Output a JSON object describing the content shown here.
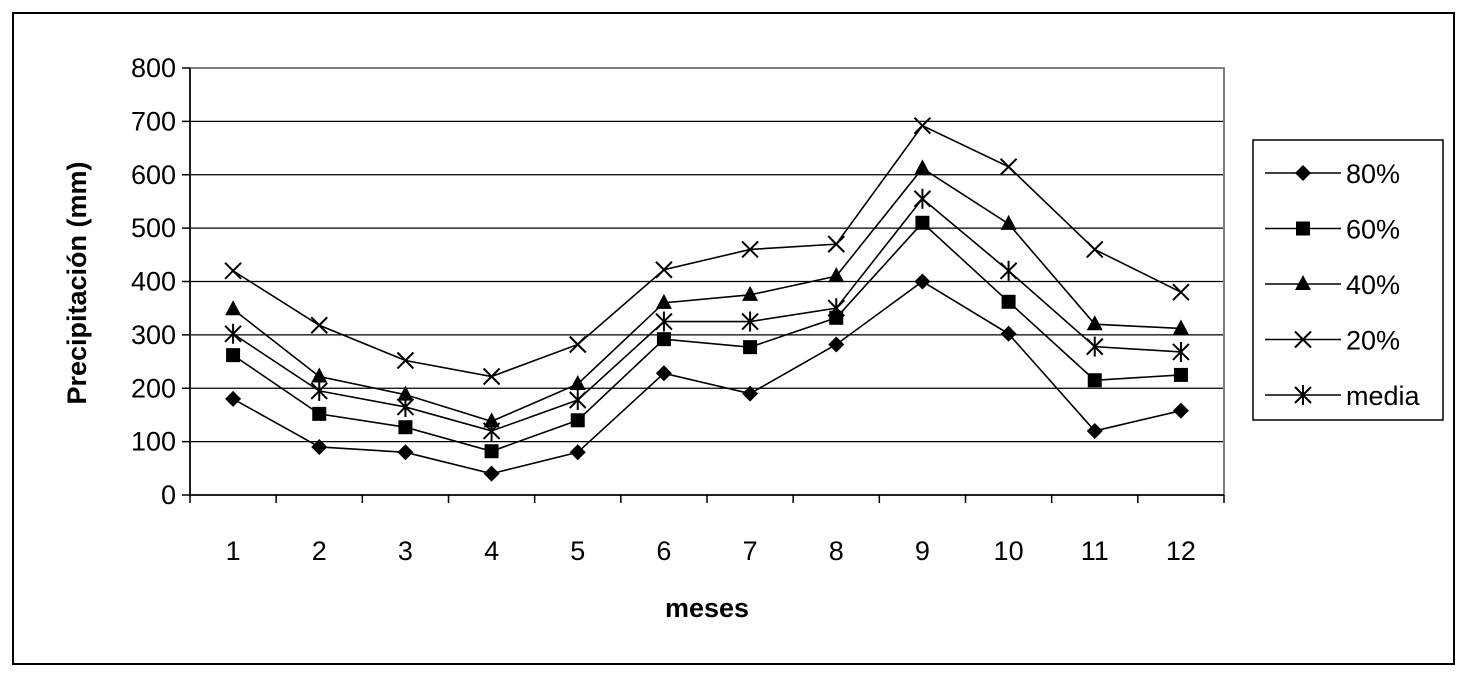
{
  "chart_data": {
    "type": "line",
    "title": "",
    "xlabel": "meses",
    "ylabel": "Precipitación (mm)",
    "ylim": [
      0,
      800
    ],
    "yticks": [
      0,
      100,
      200,
      300,
      400,
      500,
      600,
      700,
      800
    ],
    "categories": [
      "1",
      "2",
      "3",
      "4",
      "5",
      "6",
      "7",
      "8",
      "9",
      "10",
      "11",
      "12"
    ],
    "grid": "horizontal",
    "legend_position": "right",
    "series": [
      {
        "name": "80%",
        "marker": "diamond",
        "values": [
          180,
          90,
          80,
          40,
          80,
          228,
          190,
          282,
          400,
          302,
          120,
          158
        ]
      },
      {
        "name": "60%",
        "marker": "square",
        "values": [
          262,
          152,
          127,
          82,
          140,
          292,
          277,
          332,
          510,
          362,
          215,
          225
        ]
      },
      {
        "name": "40%",
        "marker": "triangle",
        "values": [
          348,
          222,
          188,
          138,
          208,
          360,
          375,
          410,
          612,
          508,
          320,
          312
        ]
      },
      {
        "name": "20%",
        "marker": "x",
        "values": [
          420,
          318,
          252,
          222,
          282,
          422,
          460,
          470,
          692,
          615,
          460,
          380
        ]
      },
      {
        "name": "media",
        "marker": "star",
        "values": [
          302,
          195,
          165,
          120,
          178,
          325,
          325,
          350,
          555,
          420,
          278,
          268
        ]
      }
    ],
    "colors": {
      "line": "#000000",
      "grid": "#000000",
      "plot_background": "#ffffff"
    }
  }
}
